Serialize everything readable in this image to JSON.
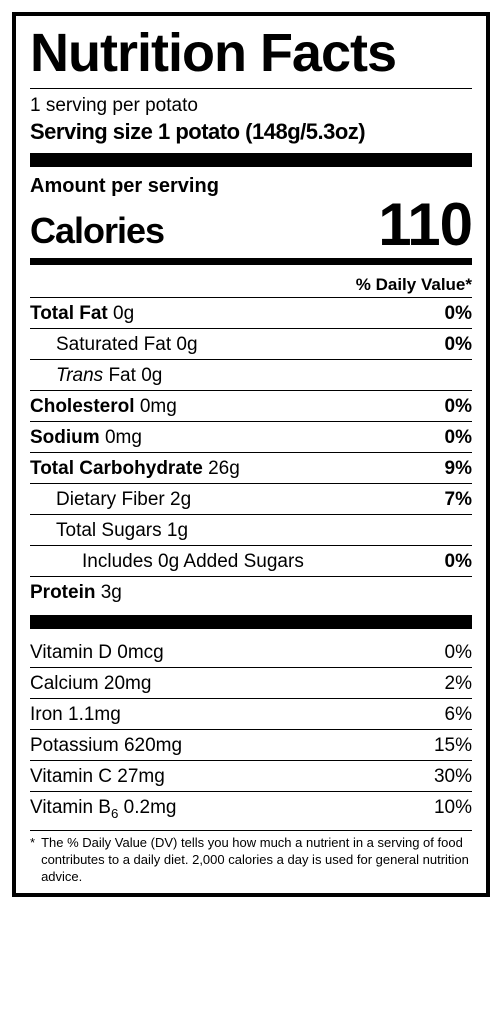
{
  "title": "Nutrition Facts",
  "servings_per": "1 serving per potato",
  "serving_size_label": "Serving size 1 potato (148g/5.3oz)",
  "amount_per_serving": "Amount per serving",
  "calories_label": "Calories",
  "calories_value": "110",
  "dv_header": "% Daily Value*",
  "nutrients": {
    "total_fat": {
      "label": "Total Fat",
      "amount": "0g",
      "dv": "0%"
    },
    "sat_fat": {
      "label": "Saturated Fat",
      "amount": "0g",
      "dv": "0%"
    },
    "trans_fat": {
      "label_prefix": "Trans",
      "label_suffix": "Fat",
      "amount": "0g"
    },
    "cholesterol": {
      "label": "Cholesterol",
      "amount": "0mg",
      "dv": "0%"
    },
    "sodium": {
      "label": "Sodium",
      "amount": "0mg",
      "dv": "0%"
    },
    "total_carb": {
      "label": "Total Carbohydrate",
      "amount": "26g",
      "dv": "9%"
    },
    "fiber": {
      "label": "Dietary Fiber",
      "amount": "2g",
      "dv": "7%"
    },
    "total_sugars": {
      "label": "Total Sugars",
      "amount": "1g"
    },
    "added_sugars": {
      "label": "Includes 0g Added Sugars",
      "dv": "0%"
    },
    "protein": {
      "label": "Protein",
      "amount": "3g"
    }
  },
  "vitamins": {
    "vitd": {
      "label": "Vitamin D 0mcg",
      "dv": "0%"
    },
    "calcium": {
      "label": "Calcium 20mg",
      "dv": "2%"
    },
    "iron": {
      "label": "Iron 1.1mg",
      "dv": "6%"
    },
    "potassium": {
      "label": "Potassium 620mg",
      "dv": "15%"
    },
    "vitc": {
      "label": "Vitamin C 27mg",
      "dv": "30%"
    },
    "vitb6": {
      "label_prefix": "Vitamin B",
      "label_sub": "6",
      "label_suffix": " 0.2mg",
      "dv": "10%"
    }
  },
  "footnote_star": "*",
  "footnote": "The % Daily Value (DV) tells you how much a nutrient in a serving of food contributes to a daily diet. 2,000 calories a day is used for general nutrition advice."
}
